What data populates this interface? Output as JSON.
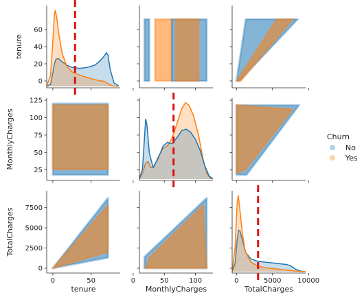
{
  "chart_data": {
    "type": "scatter",
    "title": "",
    "variables": [
      "tenure",
      "MonthlyCharges",
      "TotalCharges"
    ],
    "hue": "Churn",
    "legend": {
      "title": "Churn",
      "placement": "right",
      "entries": [
        {
          "name": "No",
          "color": "#1f77b4"
        },
        {
          "name": "Yes",
          "color": "#ff7f0e"
        }
      ]
    },
    "axes": {
      "tenure": {
        "range": [
          -8,
          88
        ],
        "ticks": [
          0,
          20,
          40,
          60
        ]
      },
      "MonthlyCharges": {
        "range": [
          10,
          128
        ],
        "ticks": [
          25,
          50,
          75,
          100,
          125
        ]
      },
      "TotalCharges": {
        "range": [
          -600,
          9600
        ],
        "ticks": [
          0,
          2500,
          5000,
          7500
        ]
      }
    },
    "x_tick_labels": {
      "tenure": [
        "0",
        "50"
      ],
      "MonthlyCharges": [
        "0",
        "50",
        "100"
      ],
      "TotalCharges": [
        "0",
        "5000",
        "10000"
      ]
    },
    "x_tick_values": {
      "tenure": [
        0,
        50
      ],
      "MonthlyCharges": [
        0,
        50,
        100
      ],
      "TotalCharges": [
        0,
        5000,
        10000
      ]
    },
    "density": {
      "tenure": {
        "No": [
          [
            -8,
            0.2
          ],
          [
            -3,
            2
          ],
          [
            0,
            12
          ],
          [
            2,
            20
          ],
          [
            4,
            24
          ],
          [
            7,
            25
          ],
          [
            12,
            22
          ],
          [
            18,
            19
          ],
          [
            25,
            17
          ],
          [
            35,
            16
          ],
          [
            45,
            17
          ],
          [
            55,
            19
          ],
          [
            62,
            23
          ],
          [
            67,
            27
          ],
          [
            70,
            30
          ],
          [
            72,
            28
          ],
          [
            75,
            15
          ],
          [
            80,
            3
          ],
          [
            86,
            0.5
          ]
        ],
        "Yes": [
          [
            -8,
            0.5
          ],
          [
            -3,
            10
          ],
          [
            0,
            40
          ],
          [
            2,
            63
          ],
          [
            3,
            68
          ],
          [
            5,
            62
          ],
          [
            8,
            46
          ],
          [
            12,
            30
          ],
          [
            18,
            18
          ],
          [
            25,
            13
          ],
          [
            35,
            10
          ],
          [
            45,
            8
          ],
          [
            55,
            6
          ],
          [
            62,
            5
          ],
          [
            67,
            4.5
          ],
          [
            70,
            3.5
          ],
          [
            73,
            2
          ],
          [
            78,
            0.5
          ],
          [
            86,
            0.1
          ]
        ]
      },
      "MonthlyCharges": {
        "No": [
          [
            10,
            0.5
          ],
          [
            15,
            14
          ],
          [
            18,
            55
          ],
          [
            20,
            82
          ],
          [
            22,
            74
          ],
          [
            26,
            35
          ],
          [
            32,
            16
          ],
          [
            40,
            28
          ],
          [
            48,
            45
          ],
          [
            55,
            50
          ],
          [
            62,
            48
          ],
          [
            70,
            56
          ],
          [
            78,
            66
          ],
          [
            85,
            68
          ],
          [
            92,
            64
          ],
          [
            100,
            54
          ],
          [
            108,
            38
          ],
          [
            115,
            18
          ],
          [
            122,
            4
          ],
          [
            128,
            0.5
          ]
        ],
        "Yes": [
          [
            10,
            0.3
          ],
          [
            15,
            8
          ],
          [
            20,
            22
          ],
          [
            24,
            24
          ],
          [
            28,
            16
          ],
          [
            33,
            16
          ],
          [
            40,
            30
          ],
          [
            48,
            42
          ],
          [
            55,
            45
          ],
          [
            62,
            55
          ],
          [
            70,
            75
          ],
          [
            78,
            96
          ],
          [
            84,
            104
          ],
          [
            90,
            100
          ],
          [
            97,
            86
          ],
          [
            105,
            60
          ],
          [
            112,
            28
          ],
          [
            118,
            8
          ],
          [
            124,
            1
          ],
          [
            128,
            0.2
          ]
        ]
      },
      "TotalCharges": {
        "No": [
          [
            -600,
            0.3
          ],
          [
            -200,
            10
          ],
          [
            100,
            40
          ],
          [
            300,
            52
          ],
          [
            500,
            51
          ],
          [
            800,
            40
          ],
          [
            1300,
            24
          ],
          [
            2000,
            16
          ],
          [
            3000,
            13
          ],
          [
            4000,
            12
          ],
          [
            5000,
            11
          ],
          [
            6000,
            10
          ],
          [
            7000,
            9
          ],
          [
            7600,
            7
          ],
          [
            8200,
            3
          ],
          [
            9000,
            0.5
          ],
          [
            9600,
            0.1
          ]
        ],
        "Yes": [
          [
            -600,
            0.5
          ],
          [
            -200,
            30
          ],
          [
            100,
            86
          ],
          [
            250,
            96
          ],
          [
            450,
            80
          ],
          [
            800,
            50
          ],
          [
            1200,
            26
          ],
          [
            2000,
            12
          ],
          [
            3000,
            7
          ],
          [
            4000,
            5
          ],
          [
            5000,
            4
          ],
          [
            6000,
            3
          ],
          [
            7000,
            2
          ],
          [
            8000,
            0.8
          ],
          [
            9000,
            0.2
          ],
          [
            9600,
            0.1
          ]
        ]
      }
    },
    "reference_lines": [
      {
        "panel": "tenure",
        "value": 29,
        "color": "#dd1111",
        "style": "dashed"
      },
      {
        "panel": "MonthlyCharges",
        "value": 64.8,
        "color": "#dd1111",
        "style": "dashed"
      },
      {
        "panel": "TotalCharges",
        "value": 3000,
        "color": "#dd1111",
        "style": "dashed"
      }
    ]
  }
}
